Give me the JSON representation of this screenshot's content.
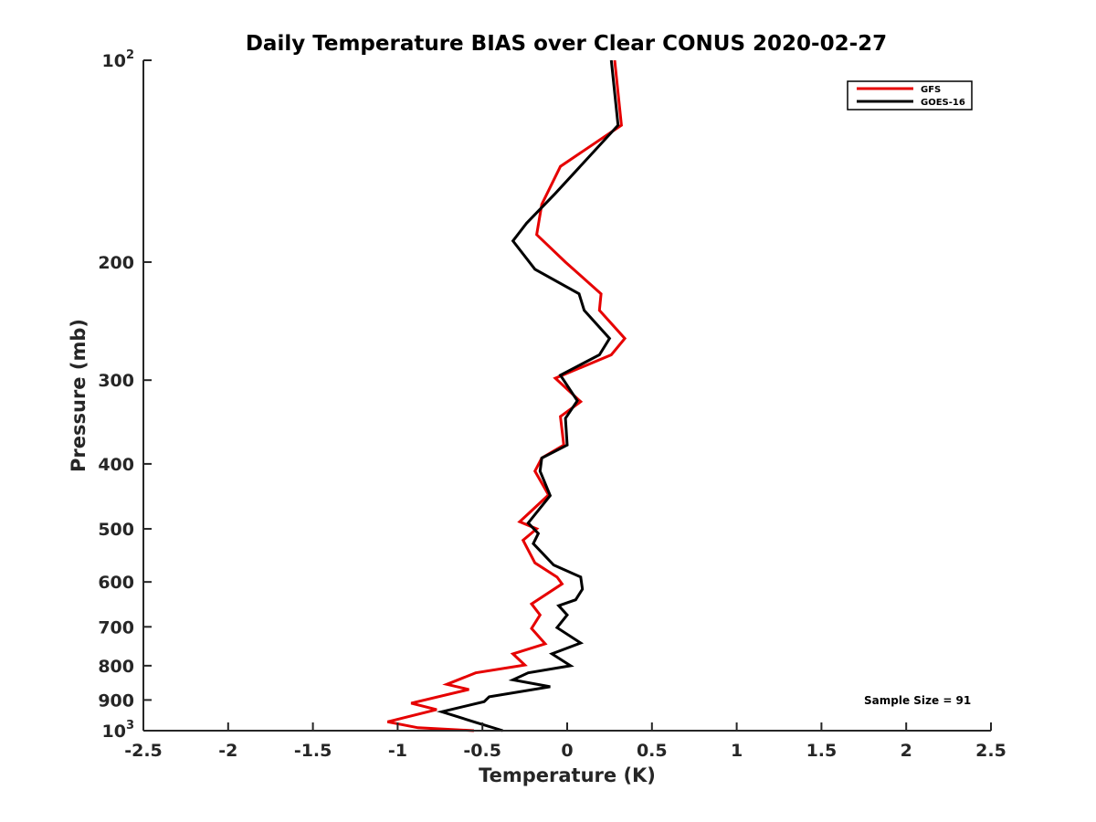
{
  "chart_data": {
    "type": "line",
    "title": "Daily Temperature BIAS over Clear CONUS 2020-02-27",
    "xlabel": "Temperature (K)",
    "ylabel": "Pressure (mb)",
    "xlim": [
      -2.5,
      2.5
    ],
    "ylim": [
      1000,
      100
    ],
    "yscale": "log",
    "grid": false,
    "legend_position": "top-right",
    "x_ticks": [
      -2.5,
      -2,
      -1.5,
      -1,
      -0.5,
      0,
      0.5,
      1,
      1.5,
      2,
      2.5
    ],
    "x_tick_labels": [
      "-2.5",
      "-2",
      "-1.5",
      "-1",
      "-0.5",
      "0",
      "0.5",
      "1",
      "1.5",
      "2",
      "2.5"
    ],
    "y_ticks": [
      100,
      200,
      300,
      400,
      500,
      600,
      700,
      800,
      900,
      1000
    ],
    "y_tick_labels": [
      {
        "base": "10",
        "sup": "2"
      },
      {
        "base": "200",
        "sup": ""
      },
      {
        "base": "300",
        "sup": ""
      },
      {
        "base": "400",
        "sup": ""
      },
      {
        "base": "500",
        "sup": ""
      },
      {
        "base": "600",
        "sup": ""
      },
      {
        "base": "700",
        "sup": ""
      },
      {
        "base": "800",
        "sup": ""
      },
      {
        "base": "900",
        "sup": ""
      },
      {
        "base": "10",
        "sup": "3"
      }
    ],
    "series": [
      {
        "name": "GFS",
        "color": "#e60000",
        "points": [
          [
            0.28,
            100
          ],
          [
            0.32,
            125
          ],
          [
            -0.04,
            144
          ],
          [
            -0.15,
            164
          ],
          [
            -0.18,
            182
          ],
          [
            -0.01,
            200
          ],
          [
            0.2,
            223
          ],
          [
            0.19,
            236
          ],
          [
            0.34,
            260
          ],
          [
            0.26,
            275
          ],
          [
            -0.07,
            298
          ],
          [
            0.08,
            323
          ],
          [
            -0.04,
            340
          ],
          [
            -0.02,
            375
          ],
          [
            -0.15,
            392
          ],
          [
            -0.19,
            410
          ],
          [
            -0.11,
            445
          ],
          [
            -0.28,
            488
          ],
          [
            -0.18,
            500
          ],
          [
            -0.26,
            520
          ],
          [
            -0.19,
            562
          ],
          [
            -0.06,
            590
          ],
          [
            -0.03,
            604
          ],
          [
            -0.21,
            647
          ],
          [
            -0.16,
            672
          ],
          [
            -0.21,
            704
          ],
          [
            -0.13,
            742
          ],
          [
            -0.32,
            768
          ],
          [
            -0.25,
            798
          ],
          [
            -0.54,
            820
          ],
          [
            -0.71,
            853
          ],
          [
            -0.58,
            868
          ],
          [
            -0.92,
            910
          ],
          [
            -0.77,
            930
          ],
          [
            -1.06,
            970
          ],
          [
            -0.88,
            990
          ],
          [
            -0.55,
            1000
          ]
        ]
      },
      {
        "name": "GOES-16",
        "color": "#000000",
        "points": [
          [
            0.26,
            100
          ],
          [
            0.3,
            125
          ],
          [
            -0.07,
            158
          ],
          [
            -0.24,
            175
          ],
          [
            -0.32,
            186
          ],
          [
            -0.19,
            205
          ],
          [
            0.07,
            223
          ],
          [
            0.1,
            236
          ],
          [
            0.25,
            260
          ],
          [
            0.19,
            275
          ],
          [
            -0.04,
            295
          ],
          [
            0.06,
            322
          ],
          [
            -0.01,
            342
          ],
          [
            0.0,
            375
          ],
          [
            -0.15,
            392
          ],
          [
            -0.16,
            410
          ],
          [
            -0.1,
            446
          ],
          [
            -0.23,
            490
          ],
          [
            -0.17,
            508
          ],
          [
            -0.2,
            526
          ],
          [
            -0.08,
            566
          ],
          [
            0.08,
            590
          ],
          [
            0.09,
            615
          ],
          [
            0.05,
            638
          ],
          [
            -0.05,
            651
          ],
          [
            0.0,
            672
          ],
          [
            -0.06,
            702
          ],
          [
            0.08,
            740
          ],
          [
            -0.09,
            768
          ],
          [
            0.02,
            800
          ],
          [
            -0.23,
            820
          ],
          [
            -0.32,
            840
          ],
          [
            -0.1,
            860
          ],
          [
            -0.46,
            890
          ],
          [
            -0.49,
            905
          ],
          [
            -0.74,
            937
          ],
          [
            -0.54,
            972
          ],
          [
            -0.38,
            1000
          ]
        ]
      }
    ],
    "annotations": [
      "Sample Size = 91"
    ]
  }
}
